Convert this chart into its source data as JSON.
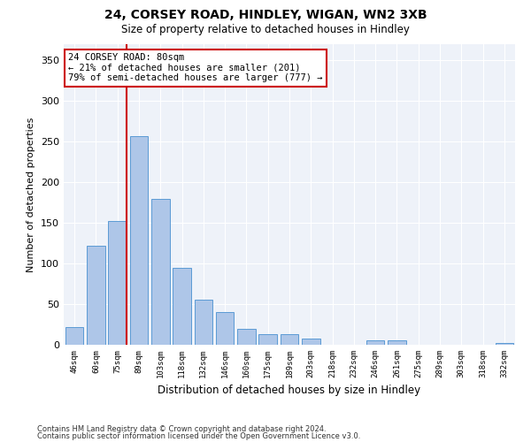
{
  "title1": "24, CORSEY ROAD, HINDLEY, WIGAN, WN2 3XB",
  "title2": "Size of property relative to detached houses in Hindley",
  "xlabel": "Distribution of detached houses by size in Hindley",
  "ylabel": "Number of detached properties",
  "categories": [
    "46sqm",
    "60sqm",
    "75sqm",
    "89sqm",
    "103sqm",
    "118sqm",
    "132sqm",
    "146sqm",
    "160sqm",
    "175sqm",
    "189sqm",
    "203sqm",
    "218sqm",
    "232sqm",
    "246sqm",
    "261sqm",
    "275sqm",
    "289sqm",
    "303sqm",
    "318sqm",
    "332sqm"
  ],
  "values": [
    22,
    122,
    152,
    257,
    180,
    95,
    55,
    40,
    20,
    13,
    13,
    8,
    0,
    0,
    5,
    5,
    0,
    0,
    0,
    0,
    2
  ],
  "bar_color": "#aec6e8",
  "bar_edgecolor": "#5b9bd5",
  "vline_color": "#cc0000",
  "annotation_text": "24 CORSEY ROAD: 80sqm\n← 21% of detached houses are smaller (201)\n79% of semi-detached houses are larger (777) →",
  "annotation_box_color": "#ffffff",
  "annotation_box_edgecolor": "#cc0000",
  "ylim": [
    0,
    370
  ],
  "yticks": [
    0,
    50,
    100,
    150,
    200,
    250,
    300,
    350
  ],
  "background_color": "#eef2f9",
  "footer_line1": "Contains HM Land Registry data © Crown copyright and database right 2024.",
  "footer_line2": "Contains public sector information licensed under the Open Government Licence v3.0."
}
